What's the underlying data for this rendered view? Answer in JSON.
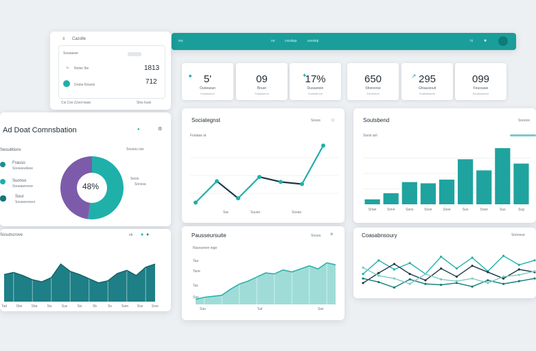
{
  "topbar": {
    "item1": "ms",
    "item2": "no",
    "item3": "cxxxiiqs",
    "item4": "sxxxiiqi",
    "right1": "hi"
  },
  "mini_panel": {
    "title": "Cazolle",
    "row_head": "Sosaasse",
    "row1_label": "Notse Ibs",
    "row1_value": "1813",
    "row2_label": "Drobe Rosels",
    "row2_value": "712",
    "footer_left": "Cis Cxe Zzsoi tsaai",
    "footer_right": "Slos lsuoi"
  },
  "kpis": [
    {
      "value": "5'",
      "label": "Ouneasun",
      "sub": "Suuiasdboo"
    },
    {
      "value": "09",
      "label": "Bouer",
      "sub": "Soasiitseoe"
    },
    {
      "value": "17%",
      "label": "Dussanoin",
      "sub": "Sousiaeoue"
    },
    {
      "value": "650",
      "label": "Sfoevorse",
      "sub": "Secoiireoe"
    },
    {
      "value": "295",
      "label": "Gfoausiouit",
      "sub": "Soasiaaseoe"
    },
    {
      "value": "099",
      "label": "Feuxsase",
      "sub": "Sooasssesoe"
    }
  ],
  "donut_panel": {
    "title": "Ad Doat Comnsbation",
    "subtitle": "Swsubtions",
    "controls": "Sousou isis",
    "legend": [
      {
        "name": "Frauso",
        "sub": "Sooseeeilsoe"
      },
      {
        "name": "Suonso",
        "sub": "Sonaiaerreoe"
      },
      {
        "name": "Sour",
        "sub": "Souseeoosor"
      }
    ],
    "center_label": "48%",
    "right_label": "Sesis",
    "right_sub": "Sonssa"
  },
  "line_panel": {
    "title": "Sociategnst",
    "subtitle": "Foalaas at",
    "controls": "Sosos",
    "x_labels": [
      "Sac",
      "Suuso",
      "Sosao"
    ]
  },
  "bar_panel": {
    "title": "Soutsbend",
    "subtitle": "Sunsi aol",
    "controls": "Sooooo",
    "x_labels": [
      "Srtae",
      "Sone",
      "Sans",
      "Sose",
      "Sose",
      "Sus",
      "Sooe",
      "Sus",
      "Sug"
    ]
  },
  "area_left_panel": {
    "title": "Sosutscrove",
    "controls": "eb",
    "x_labels": [
      "Tad",
      "Sbe",
      "Sba",
      "Sis",
      "Sus",
      "Sis",
      "Sb",
      "Ss",
      "Sam",
      "Sos",
      "Sosr"
    ]
  },
  "area_mid_panel": {
    "title": "Pausseursuite",
    "subtitle": "Rasoureve toge",
    "controls": "Souou",
    "y_labels": [
      "Taa",
      "Taoe",
      "Tas",
      "Sas"
    ],
    "x_labels": [
      "Sau",
      "Sal",
      "Sas"
    ]
  },
  "multi_panel": {
    "title": "Coasabnsoury",
    "controls": "Sooosue"
  },
  "chart_data": [
    {
      "type": "pie",
      "title": "",
      "slices": [
        {
          "name": "",
          "value": 52
        },
        {
          "name": "",
          "value": 48
        }
      ],
      "center_label": "48%"
    },
    {
      "type": "line",
      "x": [
        1,
        2,
        3,
        4,
        5,
        6,
        7
      ],
      "series": [
        {
          "name": "",
          "values": [
            12,
            42,
            18,
            48,
            41,
            38,
            92
          ]
        }
      ],
      "ylim": [
        0,
        100
      ]
    },
    {
      "type": "bar",
      "categories": [
        "Srtae",
        "Sone",
        "Sans",
        "Sose",
        "Sose",
        "Sus",
        "Sooe",
        "Sus",
        "Sug"
      ],
      "values": [
        8,
        18,
        36,
        34,
        40,
        73,
        55,
        91,
        66
      ],
      "ylim": [
        0,
        100
      ]
    },
    {
      "type": "area",
      "x": [
        1,
        2,
        3,
        4,
        5,
        6,
        7,
        8,
        9,
        10,
        11,
        12,
        13,
        14,
        15,
        16,
        17
      ],
      "series": [
        {
          "name": "",
          "values": [
            52,
            56,
            50,
            42,
            38,
            46,
            72,
            58,
            52,
            44,
            36,
            40,
            54,
            60,
            50,
            66,
            72
          ]
        }
      ],
      "ylim": [
        0,
        100
      ]
    },
    {
      "type": "area",
      "x": [
        1,
        2,
        3,
        4,
        5,
        6,
        7,
        8,
        9,
        10,
        11,
        12,
        13,
        14,
        15,
        16,
        17
      ],
      "series": [
        {
          "name": "",
          "values": [
            10,
            14,
            16,
            18,
            30,
            40,
            46,
            54,
            62,
            60,
            68,
            64,
            70,
            76,
            70,
            82,
            78
          ]
        }
      ],
      "ylim": [
        0,
        100
      ]
    },
    {
      "type": "line",
      "x": [
        1,
        2,
        3,
        4,
        5,
        6,
        7,
        8,
        9,
        10,
        11,
        12
      ],
      "series": [
        {
          "name": "",
          "values": [
            40,
            70,
            50,
            64,
            40,
            78,
            52,
            76,
            46,
            80,
            60,
            70
          ]
        },
        {
          "name": "",
          "values": [
            20,
            42,
            62,
            40,
            26,
            52,
            34,
            58,
            44,
            30,
            50,
            44
          ]
        },
        {
          "name": "",
          "values": [
            30,
            22,
            10,
            28,
            18,
            16,
            20,
            12,
            26,
            18,
            24,
            30
          ]
        },
        {
          "name": "",
          "values": [
            54,
            36,
            30,
            18,
            40,
            28,
            24,
            30,
            20,
            34,
            38,
            46
          ]
        }
      ],
      "ylim": [
        0,
        100
      ]
    }
  ]
}
